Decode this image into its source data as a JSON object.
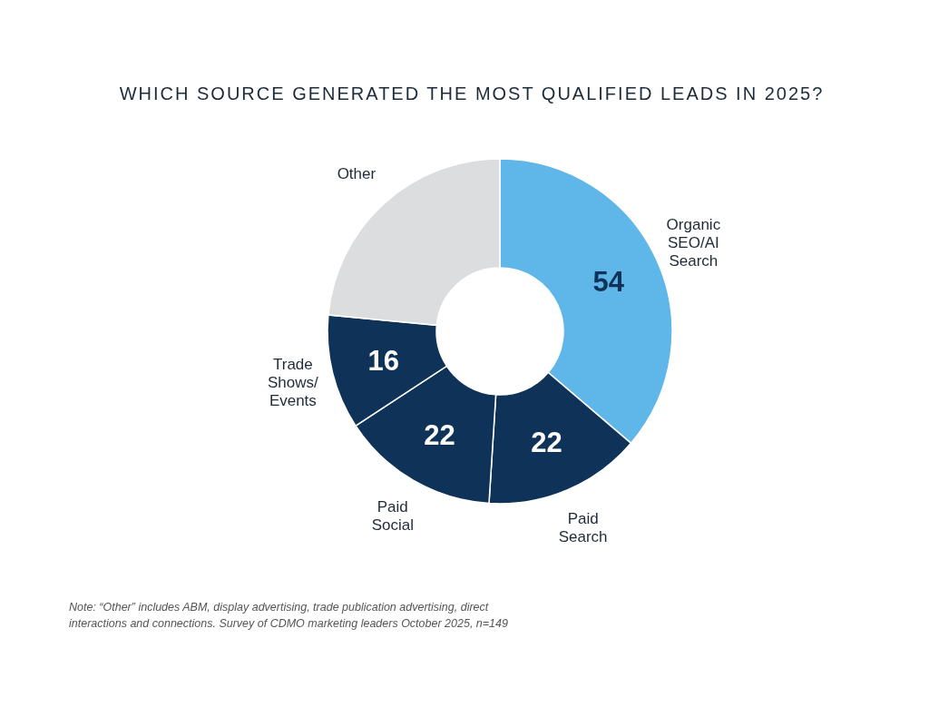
{
  "chart_data": {
    "type": "donut",
    "title": "WHICH SOURCE GENERATED THE MOST QUALIFIED LEADS IN 2025?",
    "categories": [
      "Organic\nSEO/AI\nSearch",
      "Paid\nSearch",
      "Paid\nSocial",
      "Trade\nShows/\nEvents",
      "Other"
    ],
    "values": [
      54,
      22,
      22,
      16,
      35
    ],
    "value_labels": [
      "54",
      "22",
      "22",
      "16",
      null
    ],
    "colors": [
      "#5eb6e9",
      "#0f3358",
      "#0f3358",
      "#0f3358",
      "#dcdddf"
    ],
    "annotations": [
      "Note: “Other” includes ABM, display advertising, trade publication advertising, direct interactions and connections. Survey of CDMO marketing leaders October 2025, n=149"
    ]
  }
}
